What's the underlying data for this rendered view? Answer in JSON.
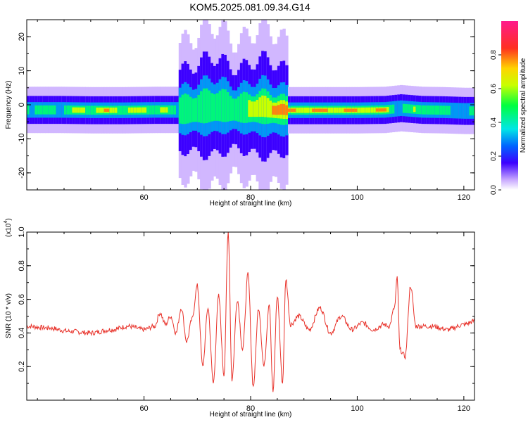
{
  "title": "KOM5.2025.081.09.34.G14",
  "colors": {
    "snr_line": "#e8322a",
    "axis": "#000000"
  },
  "chart_data": [
    {
      "type": "heatmap",
      "title": "KOM5.2025.081.09.34.G14",
      "xlabel": "Height of straight line (km)",
      "ylabel": "Frequency (Hz)",
      "xlim": [
        38,
        122
      ],
      "ylim": [
        -25,
        25
      ],
      "x_ticks": [
        60,
        80,
        100,
        120
      ],
      "y_ticks": [
        20,
        10,
        0,
        -10,
        -20
      ],
      "grid": false,
      "colorbar": {
        "label": "Normalized spectral amplitude",
        "range": [
          0.0,
          1.0
        ],
        "ticks": [
          0.0,
          0.2,
          0.4,
          0.6,
          0.8
        ],
        "colormap": "rainbow (violet → blue → cyan → green → yellow → red → magenta)"
      },
      "ridge": {
        "description": "main spectral band centred near -1.5 Hz; broad turbulent region ~67-86 km; strongest amplitude in 87-105 km",
        "height_km": [
          38,
          44,
          50,
          56,
          62,
          66,
          70,
          74,
          78,
          82,
          86,
          90,
          96,
          100,
          105,
          108,
          112,
          116,
          120
        ],
        "center_hz": [
          -1.5,
          -1.5,
          -1.6,
          -1.6,
          -1.5,
          -1.5,
          -1.0,
          -0.5,
          -1.0,
          -1.0,
          -1.6,
          -1.6,
          -1.6,
          -1.6,
          -1.5,
          -1.0,
          -1.5,
          -1.6,
          -1.8
        ],
        "peak_amplitude": [
          0.6,
          0.55,
          0.8,
          0.75,
          0.75,
          0.5,
          0.45,
          0.5,
          0.55,
          0.7,
          0.85,
          0.9,
          0.9,
          0.9,
          0.8,
          0.5,
          0.7,
          0.55,
          0.45
        ]
      }
    },
    {
      "type": "line",
      "xlabel": "Height of straight line (km)",
      "ylabel": "SNR (10 * v/v)",
      "y_multiplier": "(x10",
      "y_multiplier_exp": "4",
      "xlim": [
        38,
        122
      ],
      "ylim": [
        0.0,
        1.0
      ],
      "x_ticks": [
        60,
        80,
        100,
        120
      ],
      "y_ticks": [
        0.2,
        0.4,
        0.6,
        0.8,
        1.0
      ],
      "grid": false,
      "series": [
        {
          "points": [
            [
              38,
              0.44
            ],
            [
              42,
              0.43
            ],
            [
              46,
              0.41
            ],
            [
              50,
              0.4
            ],
            [
              54,
              0.42
            ],
            [
              57,
              0.44
            ],
            [
              60,
              0.42
            ],
            [
              62,
              0.44
            ],
            [
              63,
              0.52
            ],
            [
              64,
              0.45
            ],
            [
              65,
              0.5
            ],
            [
              66,
              0.4
            ],
            [
              67,
              0.55
            ],
            [
              68,
              0.35
            ],
            [
              69,
              0.48
            ],
            [
              70,
              0.68
            ],
            [
              71,
              0.2
            ],
            [
              72,
              0.55
            ],
            [
              73,
              0.1
            ],
            [
              74,
              0.62
            ],
            [
              75,
              0.15
            ],
            [
              75.8,
              1.0
            ],
            [
              76.5,
              0.12
            ],
            [
              77.5,
              0.6
            ],
            [
              78.5,
              0.3
            ],
            [
              79.5,
              0.75
            ],
            [
              80.5,
              0.08
            ],
            [
              81.5,
              0.55
            ],
            [
              82.5,
              0.2
            ],
            [
              83.5,
              0.58
            ],
            [
              84.2,
              0.05
            ],
            [
              85,
              0.62
            ],
            [
              86,
              0.1
            ],
            [
              86.6,
              0.72
            ],
            [
              87.5,
              0.45
            ],
            [
              89,
              0.5
            ],
            [
              91,
              0.42
            ],
            [
              93,
              0.55
            ],
            [
              95,
              0.4
            ],
            [
              97,
              0.5
            ],
            [
              99,
              0.42
            ],
            [
              101,
              0.46
            ],
            [
              103,
              0.42
            ],
            [
              105,
              0.45
            ],
            [
              106,
              0.44
            ],
            [
              107,
              0.55
            ],
            [
              107.5,
              0.73
            ],
            [
              108,
              0.3
            ],
            [
              109,
              0.26
            ],
            [
              110,
              0.68
            ],
            [
              111,
              0.44
            ],
            [
              114,
              0.44
            ],
            [
              117,
              0.42
            ],
            [
              120,
              0.45
            ],
            [
              122,
              0.47
            ]
          ]
        }
      ]
    }
  ]
}
